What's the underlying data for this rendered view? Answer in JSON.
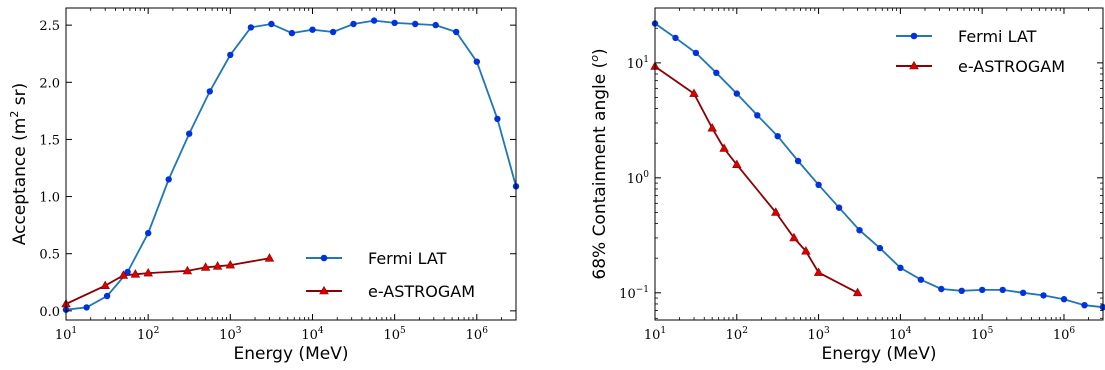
{
  "chart_data": [
    {
      "type": "line",
      "xscale": "log",
      "yscale": "linear",
      "xlim": [
        10,
        3000000
      ],
      "ylim": [
        -0.08,
        2.65
      ],
      "xlabel": "Energy (MeV)",
      "ylabel_main": "Acceptance (m",
      "ylabel_sup": "2",
      "ylabel_tail": " sr)",
      "xticks": [
        {
          "value": 10,
          "base": "10",
          "exp": "1"
        },
        {
          "value": 100,
          "base": "10",
          "exp": "2"
        },
        {
          "value": 1000,
          "base": "10",
          "exp": "3"
        },
        {
          "value": 10000,
          "base": "10",
          "exp": "4"
        },
        {
          "value": 100000,
          "base": "10",
          "exp": "5"
        },
        {
          "value": 1000000,
          "base": "10",
          "exp": "6"
        }
      ],
      "yticks": [
        {
          "value": 0.0,
          "label": "0.0"
        },
        {
          "value": 0.5,
          "label": "0.5"
        },
        {
          "value": 1.0,
          "label": "1.0"
        },
        {
          "value": 1.5,
          "label": "1.5"
        },
        {
          "value": 2.0,
          "label": "2.0"
        },
        {
          "value": 2.5,
          "label": "2.5"
        }
      ],
      "legend_position": "lower-right",
      "series": [
        {
          "name": "Fermi LAT",
          "color": "#1f77b4",
          "marker_color": "#0033dd",
          "marker": "circle",
          "x": [
            10,
            17.8,
            31.6,
            56.2,
            100,
            178,
            316,
            562,
            1000,
            1780,
            3160,
            5620,
            10000,
            17800,
            31600,
            56200,
            100000,
            178000,
            316000,
            562000,
            1000000,
            1780000,
            3000000
          ],
          "y": [
            0.01,
            0.03,
            0.13,
            0.34,
            0.68,
            1.15,
            1.55,
            1.92,
            2.24,
            2.48,
            2.51,
            2.43,
            2.46,
            2.44,
            2.51,
            2.54,
            2.52,
            2.51,
            2.5,
            2.44,
            2.18,
            1.68,
            1.09
          ]
        },
        {
          "name": "e-ASTROGAM",
          "color": "#8b0000",
          "marker_color": "#dd0000",
          "marker": "triangle",
          "x": [
            10,
            30,
            50,
            70,
            100,
            300,
            500,
            700,
            1000,
            3000
          ],
          "y": [
            0.06,
            0.22,
            0.31,
            0.32,
            0.33,
            0.35,
            0.38,
            0.39,
            0.4,
            0.46
          ]
        }
      ]
    },
    {
      "type": "line",
      "xscale": "log",
      "yscale": "log",
      "xlim": [
        10,
        3000000
      ],
      "ylim": [
        0.058,
        30
      ],
      "xlabel": "Energy (MeV)",
      "ylabel_main": "68% Containment angle (",
      "ylabel_sup": "o",
      "ylabel_tail": ")",
      "xticks": [
        {
          "value": 10,
          "base": "10",
          "exp": "1"
        },
        {
          "value": 100,
          "base": "10",
          "exp": "2"
        },
        {
          "value": 1000,
          "base": "10",
          "exp": "3"
        },
        {
          "value": 10000,
          "base": "10",
          "exp": "4"
        },
        {
          "value": 100000,
          "base": "10",
          "exp": "5"
        },
        {
          "value": 1000000,
          "base": "10",
          "exp": "6"
        }
      ],
      "yticks": [
        {
          "value": 0.1,
          "base": "10",
          "exp": "−1"
        },
        {
          "value": 1,
          "base": "10",
          "exp": "0"
        },
        {
          "value": 10,
          "base": "10",
          "exp": "1"
        }
      ],
      "legend_position": "top-right",
      "series": [
        {
          "name": "Fermi LAT",
          "color": "#1f77b4",
          "marker_color": "#0033dd",
          "marker": "circle",
          "x": [
            10,
            17.8,
            31.6,
            56.2,
            100,
            178,
            316,
            562,
            1000,
            1780,
            3160,
            5620,
            10000,
            17800,
            31600,
            56200,
            100000,
            178000,
            316000,
            562000,
            1000000,
            1780000,
            3000000
          ],
          "y": [
            22,
            16.5,
            12.2,
            8.2,
            5.4,
            3.5,
            2.3,
            1.4,
            0.87,
            0.55,
            0.35,
            0.245,
            0.165,
            0.13,
            0.108,
            0.104,
            0.106,
            0.106,
            0.1,
            0.095,
            0.088,
            0.078,
            0.075
          ]
        },
        {
          "name": "e-ASTROGAM",
          "color": "#8b0000",
          "marker_color": "#dd0000",
          "marker": "triangle",
          "x": [
            10,
            30,
            50,
            70,
            100,
            300,
            500,
            700,
            1000,
            3000
          ],
          "y": [
            9.3,
            5.4,
            2.7,
            1.8,
            1.3,
            0.5,
            0.3,
            0.23,
            0.15,
            0.1
          ]
        }
      ]
    }
  ]
}
